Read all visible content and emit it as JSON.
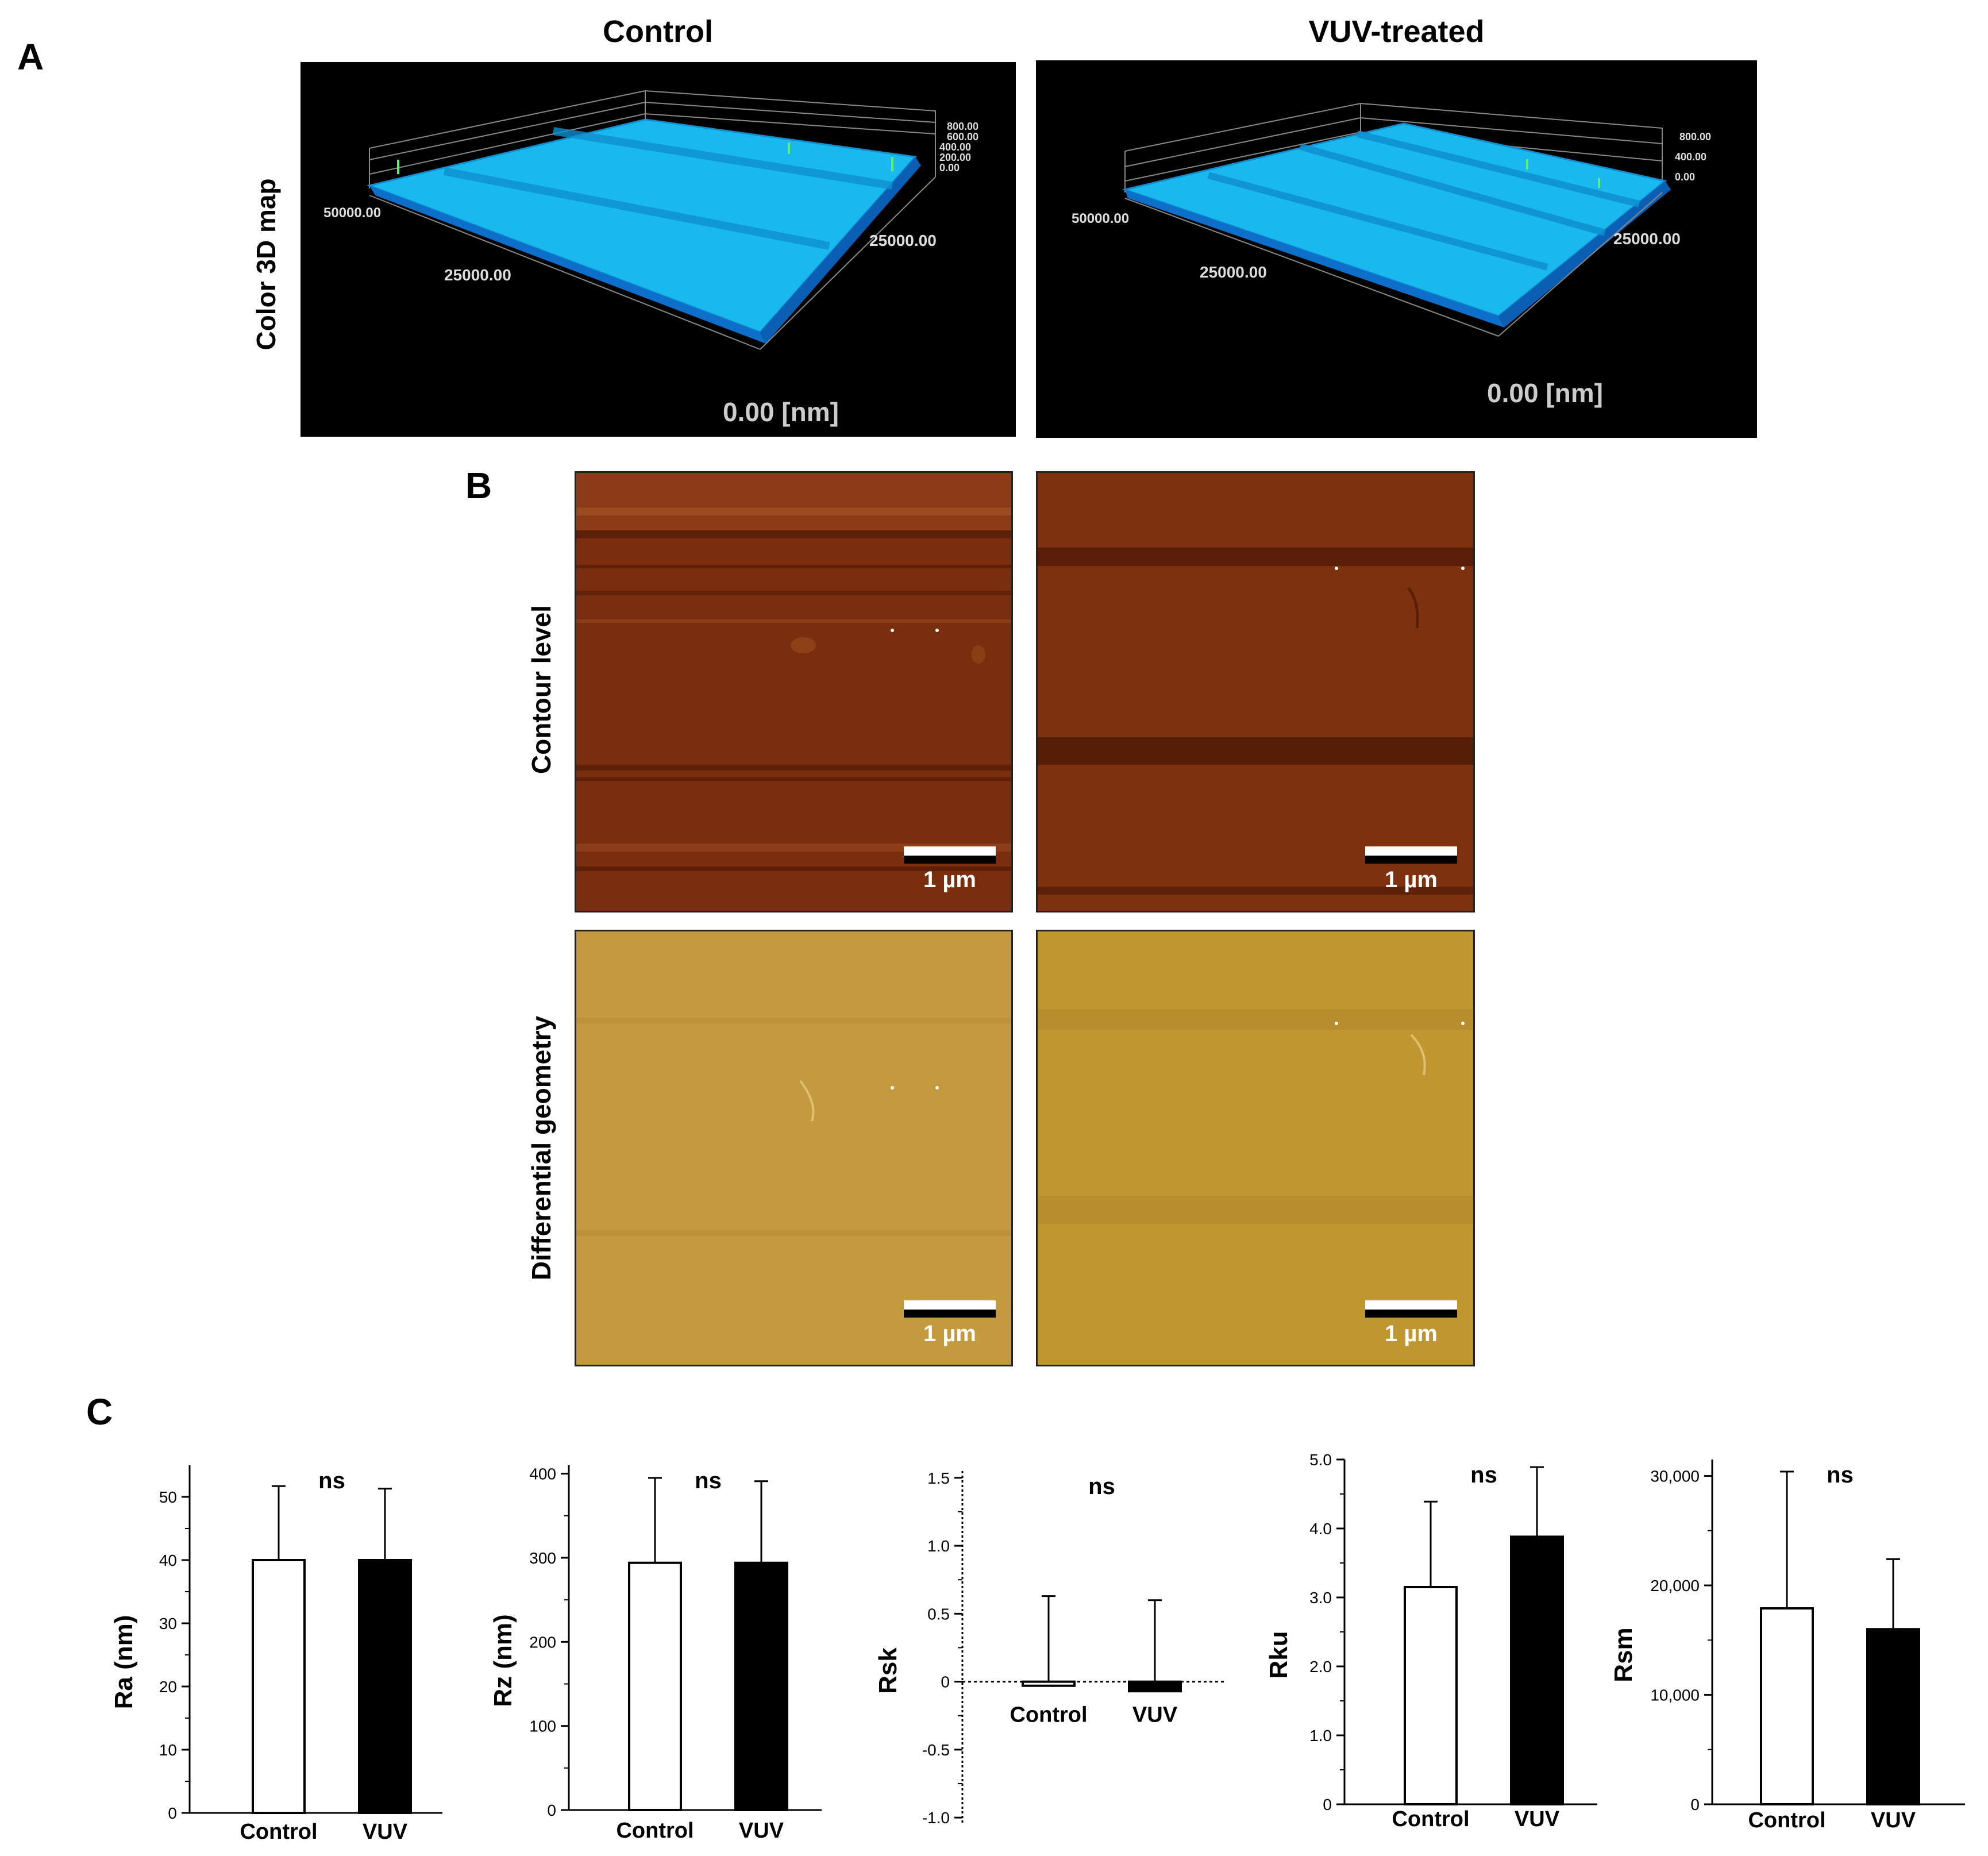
{
  "panels": {
    "a": {
      "letter": "A",
      "row_label": "Color 3D map",
      "columns": [
        {
          "title": "Control",
          "z_ticks": [
            "800.00",
            "600.00",
            "400.00",
            "200.00",
            "0.00"
          ],
          "xy_ticks": [
            "50000.00",
            "25000.00",
            "25000.00"
          ],
          "origin_label": "0.00 [nm]"
        },
        {
          "title": "VUV-treated",
          "z_ticks": [
            "800.00",
            "400.00",
            "0.00"
          ],
          "xy_ticks": [
            "50000.00",
            "25000.00",
            "25000.00"
          ],
          "origin_label": "0.00 [nm]"
        }
      ]
    },
    "b": {
      "letter": "B",
      "rows": [
        {
          "label": "Contour level",
          "scale_label": "1 µm"
        },
        {
          "label": "Differential geometry",
          "scale_label": "1 µm"
        }
      ]
    },
    "c": {
      "letter": "C"
    }
  },
  "colors": {
    "map_bg": "#000000",
    "surface": "#19b9ef",
    "contour": "#7a2e0e",
    "differential": "#c49a3e",
    "bar_control": "#ffffff",
    "bar_vuv": "#000000"
  },
  "chart_data": [
    {
      "type": "bar",
      "ylabel": "Ra (nm)",
      "categories": [
        "Control",
        "VUV"
      ],
      "values": [
        40,
        40
      ],
      "errors": [
        11.7,
        11.3
      ],
      "ylim": [
        0,
        55
      ],
      "ticks": [
        "0",
        "10",
        "20",
        "30",
        "40",
        "50"
      ],
      "tick_values": [
        0,
        10,
        20,
        30,
        40,
        50
      ],
      "annotation": "ns"
    },
    {
      "type": "bar",
      "ylabel": "Rz (nm)",
      "categories": [
        "Control",
        "VUV"
      ],
      "values": [
        294,
        294
      ],
      "errors": [
        101,
        97
      ],
      "ylim": [
        0,
        410
      ],
      "ticks": [
        "0",
        "100",
        "200",
        "300",
        "400"
      ],
      "tick_values": [
        0,
        100,
        200,
        300,
        400
      ],
      "annotation": "ns"
    },
    {
      "type": "bar",
      "ylabel": "Rsk",
      "categories": [
        "Control",
        "VUV"
      ],
      "values": [
        -0.03,
        -0.07
      ],
      "errors": [
        0.66,
        0.67
      ],
      "ylim": [
        -1.05,
        1.55
      ],
      "ticks": [
        "-1.0",
        "-0.5",
        "0",
        "0.5",
        "1.0",
        "1.5"
      ],
      "tick_values": [
        -1.0,
        -0.5,
        0,
        0.5,
        1.0,
        1.5
      ],
      "annotation": "ns"
    },
    {
      "type": "bar",
      "ylabel": "Rku",
      "categories": [
        "Control",
        "VUV"
      ],
      "values": [
        3.15,
        3.88
      ],
      "errors": [
        1.24,
        1.01
      ],
      "ylim": [
        0,
        5.0
      ],
      "ticks": [
        "0",
        "1.0",
        "2.0",
        "3.0",
        "4.0",
        "5.0"
      ],
      "tick_values": [
        0,
        1.0,
        2.0,
        3.0,
        4.0,
        5.0
      ],
      "annotation": "ns"
    },
    {
      "type": "bar",
      "ylabel": "Rsm",
      "categories": [
        "Control",
        "VUV"
      ],
      "values": [
        17900,
        16000
      ],
      "errors": [
        12500,
        6400
      ],
      "ylim": [
        0,
        31500
      ],
      "ticks": [
        "0",
        "10,000",
        "20,000",
        "30,000"
      ],
      "tick_values": [
        0,
        10000,
        20000,
        30000
      ],
      "annotation": "ns"
    }
  ]
}
